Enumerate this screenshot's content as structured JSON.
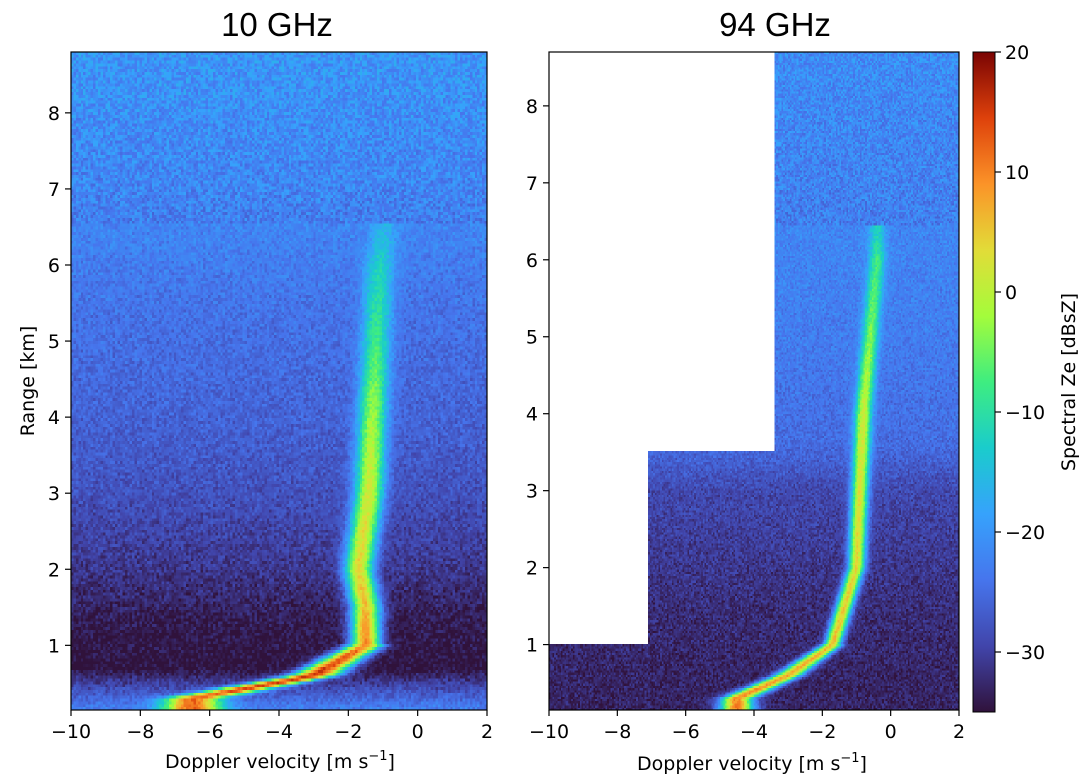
{
  "chart_data": [
    {
      "type": "heatmap",
      "title": "10 GHz",
      "xlabel": "Doppler velocity [m s",
      "xlabel_unit_exponent": "−1",
      "xlabel_close": "]",
      "ylabel": "Range [km]",
      "xlim": [
        -10,
        2
      ],
      "ylim": [
        0.15,
        8.8
      ],
      "xticks": [
        -10,
        -8,
        -6,
        -4,
        -2,
        0,
        2
      ],
      "xtick_labels": [
        "−10",
        "−8",
        "−6",
        "−4",
        "−2",
        "0",
        "2"
      ],
      "yticks": [
        1,
        2,
        3,
        4,
        5,
        6,
        7,
        8
      ],
      "ytick_labels": [
        "1",
        "2",
        "3",
        "4",
        "5",
        "6",
        "7",
        "8"
      ],
      "noise_floor_dBsZ": [
        {
          "range_km": 0.2,
          "dBsZ": -24
        },
        {
          "range_km": 0.7,
          "dBsZ": -36
        },
        {
          "range_km": 1.3,
          "dBsZ": -35
        },
        {
          "range_km": 2.0,
          "dBsZ": -32
        },
        {
          "range_km": 3.0,
          "dBsZ": -29
        },
        {
          "range_km": 4.0,
          "dBsZ": -27
        },
        {
          "range_km": 5.5,
          "dBsZ": -25
        },
        {
          "range_km": 7.0,
          "dBsZ": -22
        },
        {
          "range_km": 8.8,
          "dBsZ": -20
        }
      ],
      "signal_peak": [
        {
          "range_km": 0.3,
          "velocity": -6.5,
          "dBsZ": 12
        },
        {
          "range_km": 0.6,
          "velocity": -3.0,
          "dBsZ": 16
        },
        {
          "range_km": 1.0,
          "velocity": -1.5,
          "dBsZ": 10
        },
        {
          "range_km": 1.5,
          "velocity": -1.5,
          "dBsZ": 6
        },
        {
          "range_km": 2.0,
          "velocity": -1.7,
          "dBsZ": 4
        },
        {
          "range_km": 3.0,
          "velocity": -1.4,
          "dBsZ": 2
        },
        {
          "range_km": 4.0,
          "velocity": -1.3,
          "dBsZ": -2
        },
        {
          "range_km": 5.0,
          "velocity": -1.2,
          "dBsZ": -8
        },
        {
          "range_km": 6.0,
          "velocity": -1.1,
          "dBsZ": -12
        },
        {
          "range_km": 6.4,
          "velocity": -1.0,
          "dBsZ": -16
        }
      ]
    },
    {
      "type": "heatmap",
      "title": "94 GHz",
      "xlabel": "Doppler velocity [m s",
      "xlabel_unit_exponent": "−1",
      "xlabel_close": "]",
      "xlim": [
        -10,
        2
      ],
      "ylim": [
        0.15,
        8.7
      ],
      "xticks": [
        -10,
        -8,
        -6,
        -4,
        -2,
        0,
        2
      ],
      "xtick_labels": [
        "−10",
        "−8",
        "−6",
        "−4",
        "−2",
        "0",
        "2"
      ],
      "yticks": [
        1,
        2,
        3,
        4,
        5,
        6,
        7,
        8
      ],
      "ytick_labels": [
        "1",
        "2",
        "3",
        "4",
        "5",
        "6",
        "7",
        "8"
      ],
      "no_data_regions": [
        {
          "range_km": [
            1.0,
            3.5
          ],
          "velocity": [
            -10,
            -7.1
          ]
        },
        {
          "range_km": [
            3.5,
            8.7
          ],
          "velocity": [
            -10,
            -3.4
          ]
        }
      ],
      "noise_floor_dBsZ": [
        {
          "range_km": 0.5,
          "dBsZ": -34
        },
        {
          "range_km": 1.5,
          "dBsZ": -33
        },
        {
          "range_km": 3.0,
          "dBsZ": -30
        },
        {
          "range_km": 3.6,
          "dBsZ": -26
        },
        {
          "range_km": 5.0,
          "dBsZ": -24
        },
        {
          "range_km": 8.7,
          "dBsZ": -21
        }
      ],
      "signal_peak": [
        {
          "range_km": 0.3,
          "velocity": -4.5,
          "dBsZ": 10
        },
        {
          "range_km": 0.6,
          "velocity": -3.0,
          "dBsZ": 8
        },
        {
          "range_km": 1.0,
          "velocity": -1.7,
          "dBsZ": 6
        },
        {
          "range_km": 2.0,
          "velocity": -1.0,
          "dBsZ": 4
        },
        {
          "range_km": 3.0,
          "velocity": -0.9,
          "dBsZ": 3
        },
        {
          "range_km": 4.0,
          "velocity": -0.8,
          "dBsZ": 1
        },
        {
          "range_km": 5.0,
          "velocity": -0.6,
          "dBsZ": -4
        },
        {
          "range_km": 6.0,
          "velocity": -0.4,
          "dBsZ": -8
        },
        {
          "range_km": 6.3,
          "velocity": -0.4,
          "dBsZ": -12
        }
      ]
    }
  ],
  "colorbar": {
    "label": "Spectral Ze [dBsZ]",
    "range": [
      -35,
      20
    ],
    "ticks": [
      20,
      10,
      0,
      -10,
      -20,
      -30
    ],
    "tick_labels": [
      "20",
      "10",
      "0",
      "−10",
      "−20",
      "−30"
    ],
    "colormap": "turbo"
  }
}
